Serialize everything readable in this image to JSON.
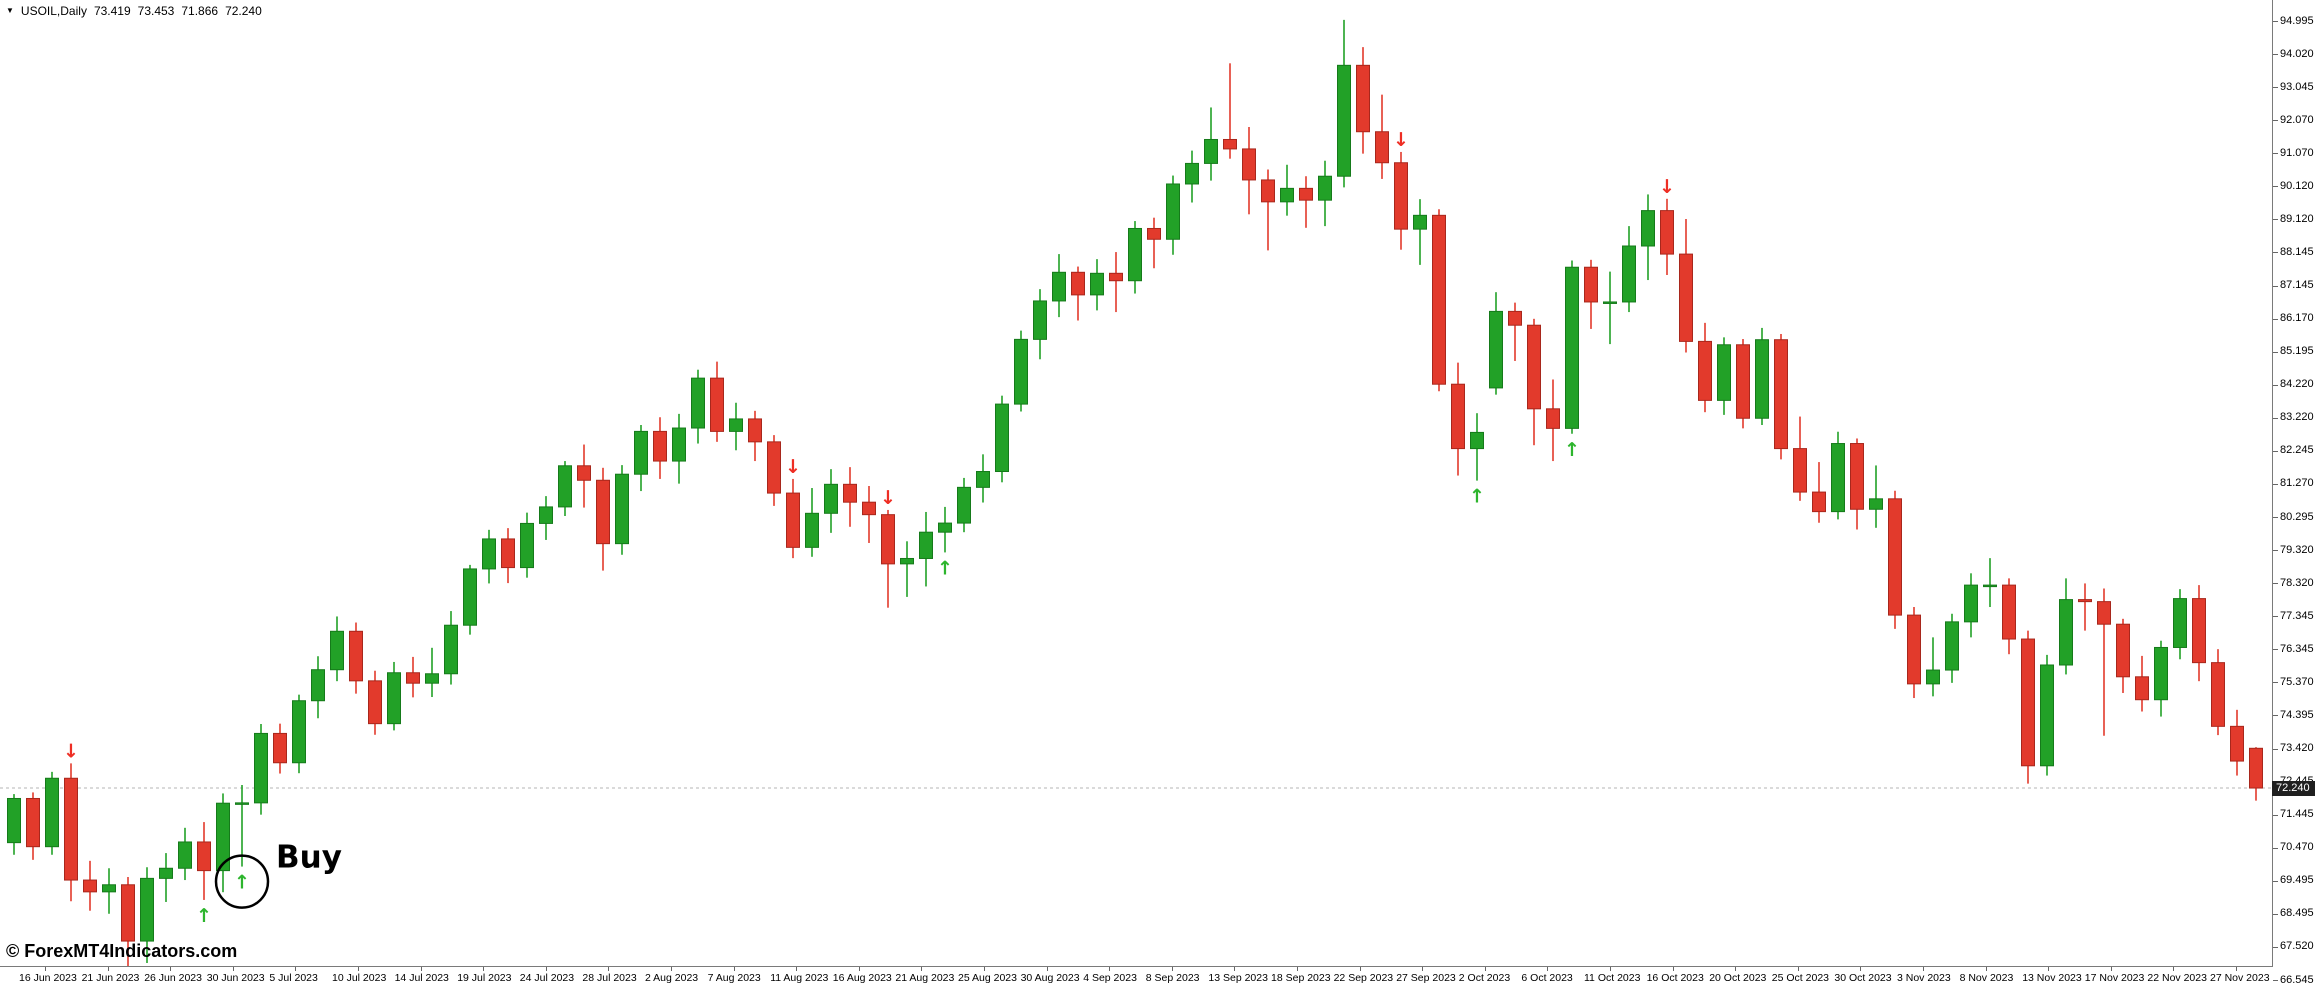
{
  "info_bar": {
    "symbol": "USOIL,Daily",
    "open": "73.419",
    "high": "73.453",
    "low": "71.866",
    "close": "72.240"
  },
  "watermark": "© ForexMT4Indicators.com",
  "annotation": {
    "label": "Buy"
  },
  "icons": {
    "chart_menu": "▼",
    "buy_arrow": "↑",
    "sell_arrow": "↓"
  },
  "chart_data": {
    "type": "candlestick",
    "symbol": "USOIL",
    "timeframe": "Daily",
    "price_axis": {
      "top_value": 94.995,
      "bottom_value": 66.545,
      "current_price": "72.240",
      "current_price_value": 72.24,
      "labels": [
        "94.995",
        "94.020",
        "93.045",
        "92.070",
        "91.070",
        "90.120",
        "89.120",
        "88.145",
        "87.145",
        "86.170",
        "85.195",
        "84.220",
        "83.220",
        "82.245",
        "81.270",
        "80.295",
        "79.320",
        "78.320",
        "77.345",
        "76.345",
        "75.370",
        "74.395",
        "73.420",
        "72.445",
        "71.445",
        "70.470",
        "69.495",
        "68.495",
        "67.520",
        "66.545"
      ]
    },
    "time_axis": {
      "labels": [
        "16 Jun 2023",
        "21 Jun 2023",
        "26 Jun 2023",
        "30 Jun 2023",
        "5 Jul 2023",
        "10 Jul 2023",
        "14 Jul 2023",
        "19 Jul 2023",
        "24 Jul 2023",
        "28 Jul 2023",
        "2 Aug 2023",
        "7 Aug 2023",
        "11 Aug 2023",
        "16 Aug 2023",
        "21 Aug 2023",
        "25 Aug 2023",
        "30 Aug 2023",
        "4 Sep 2023",
        "8 Sep 2023",
        "13 Sep 2023",
        "18 Sep 2023",
        "22 Sep 2023",
        "27 Sep 2023",
        "2 Oct 2023",
        "6 Oct 2023",
        "11 Oct 2023",
        "16 Oct 2023",
        "20 Oct 2023",
        "25 Oct 2023",
        "30 Oct 2023",
        "3 Nov 2023",
        "8 Nov 2023",
        "13 Nov 2023",
        "17 Nov 2023",
        "22 Nov 2023",
        "27 Nov 2023"
      ]
    },
    "candles": [
      [
        70.62,
        72.06,
        70.26,
        71.93
      ],
      [
        71.93,
        72.11,
        70.11,
        70.5
      ],
      [
        70.5,
        72.72,
        70.26,
        72.53
      ],
      [
        72.53,
        72.97,
        68.88,
        69.51
      ],
      [
        69.51,
        70.08,
        68.6,
        69.16
      ],
      [
        69.16,
        69.86,
        68.51,
        69.37
      ],
      [
        69.37,
        69.6,
        66.96,
        67.7
      ],
      [
        67.7,
        69.89,
        67.05,
        69.56
      ],
      [
        69.56,
        70.31,
        68.86,
        69.86
      ],
      [
        69.86,
        71.06,
        69.51,
        70.64
      ],
      [
        70.64,
        71.23,
        68.92,
        69.79
      ],
      [
        69.79,
        72.08,
        69.15,
        71.79
      ],
      [
        71.79,
        72.33,
        69.91,
        71.8
      ],
      [
        71.8,
        74.14,
        71.45,
        73.86
      ],
      [
        73.86,
        74.15,
        72.67,
        72.99
      ],
      [
        72.99,
        75.01,
        72.68,
        74.83
      ],
      [
        74.83,
        76.15,
        74.31,
        75.75
      ],
      [
        75.75,
        77.33,
        75.41,
        76.89
      ],
      [
        76.89,
        77.15,
        75.04,
        75.42
      ],
      [
        75.42,
        75.72,
        73.82,
        74.15
      ],
      [
        74.15,
        75.98,
        73.95,
        75.66
      ],
      [
        75.66,
        76.13,
        74.93,
        75.35
      ],
      [
        75.35,
        76.4,
        74.94,
        75.63
      ],
      [
        75.63,
        77.49,
        75.31,
        77.07
      ],
      [
        77.07,
        78.86,
        76.79,
        78.74
      ],
      [
        78.74,
        79.9,
        78.31,
        79.63
      ],
      [
        79.63,
        79.95,
        78.32,
        78.78
      ],
      [
        78.78,
        80.41,
        78.48,
        80.09
      ],
      [
        80.09,
        80.9,
        79.6,
        80.58
      ],
      [
        80.58,
        81.94,
        80.31,
        81.8
      ],
      [
        81.8,
        82.43,
        80.56,
        81.37
      ],
      [
        81.37,
        81.74,
        78.69,
        79.49
      ],
      [
        79.49,
        81.82,
        79.16,
        81.55
      ],
      [
        81.55,
        83.01,
        81.05,
        82.82
      ],
      [
        82.82,
        83.24,
        81.41,
        81.94
      ],
      [
        81.94,
        83.34,
        81.27,
        82.92
      ],
      [
        82.92,
        84.65,
        82.46,
        84.4
      ],
      [
        84.4,
        84.89,
        82.51,
        82.82
      ],
      [
        82.82,
        83.67,
        82.26,
        83.19
      ],
      [
        83.19,
        83.43,
        81.94,
        82.51
      ],
      [
        82.51,
        82.71,
        80.61,
        80.99
      ],
      [
        80.99,
        81.41,
        79.06,
        79.38
      ],
      [
        79.38,
        81.14,
        79.1,
        80.39
      ],
      [
        80.39,
        81.7,
        79.81,
        81.25
      ],
      [
        81.25,
        81.76,
        79.99,
        80.72
      ],
      [
        80.72,
        81.2,
        79.51,
        80.35
      ],
      [
        80.35,
        80.49,
        77.59,
        78.89
      ],
      [
        78.89,
        79.56,
        77.91,
        79.05
      ],
      [
        79.05,
        80.43,
        78.22,
        79.83
      ],
      [
        79.83,
        80.58,
        79.23,
        80.1
      ],
      [
        80.1,
        81.44,
        79.83,
        81.16
      ],
      [
        81.16,
        82.14,
        80.71,
        81.63
      ],
      [
        81.63,
        83.88,
        81.31,
        83.63
      ],
      [
        83.63,
        85.81,
        83.41,
        85.55
      ],
      [
        85.55,
        87.04,
        84.96,
        86.69
      ],
      [
        86.69,
        88.08,
        86.21,
        87.54
      ],
      [
        87.54,
        87.71,
        86.11,
        86.87
      ],
      [
        86.87,
        87.93,
        86.41,
        87.51
      ],
      [
        87.51,
        88.14,
        86.36,
        87.29
      ],
      [
        87.29,
        89.06,
        86.91,
        88.84
      ],
      [
        88.84,
        89.16,
        87.66,
        88.52
      ],
      [
        88.52,
        90.41,
        88.06,
        90.16
      ],
      [
        90.16,
        91.15,
        89.61,
        90.77
      ],
      [
        90.77,
        92.43,
        90.26,
        91.48
      ],
      [
        91.48,
        93.74,
        90.91,
        91.2
      ],
      [
        91.2,
        91.85,
        89.26,
        90.28
      ],
      [
        90.28,
        90.59,
        88.19,
        89.63
      ],
      [
        89.63,
        90.73,
        89.22,
        90.03
      ],
      [
        90.03,
        90.39,
        88.86,
        89.68
      ],
      [
        89.68,
        90.85,
        88.91,
        90.39
      ],
      [
        90.39,
        95.03,
        90.06,
        93.68
      ],
      [
        93.68,
        94.22,
        91.06,
        91.71
      ],
      [
        91.71,
        92.81,
        90.31,
        90.79
      ],
      [
        90.79,
        91.11,
        88.21,
        88.82
      ],
      [
        88.82,
        89.71,
        87.76,
        89.23
      ],
      [
        89.23,
        89.41,
        84.01,
        84.22
      ],
      [
        84.22,
        84.86,
        81.51,
        82.31
      ],
      [
        82.31,
        83.36,
        81.36,
        82.79
      ],
      [
        84.11,
        86.95,
        83.91,
        86.38
      ],
      [
        86.38,
        86.64,
        84.91,
        85.97
      ],
      [
        85.97,
        86.16,
        82.41,
        83.49
      ],
      [
        83.49,
        84.36,
        81.94,
        82.91
      ],
      [
        82.91,
        87.89,
        82.75,
        87.69
      ],
      [
        87.69,
        87.91,
        85.86,
        86.66
      ],
      [
        86.66,
        87.56,
        85.41,
        86.66
      ],
      [
        86.66,
        88.91,
        86.36,
        88.32
      ],
      [
        88.32,
        89.85,
        87.31,
        89.37
      ],
      [
        89.37,
        89.72,
        87.46,
        88.08
      ],
      [
        88.08,
        89.12,
        85.16,
        85.49
      ],
      [
        85.49,
        86.04,
        83.39,
        83.74
      ],
      [
        83.74,
        85.61,
        83.31,
        85.39
      ],
      [
        85.39,
        85.56,
        82.91,
        83.21
      ],
      [
        83.21,
        85.89,
        83.01,
        85.54
      ],
      [
        85.54,
        85.71,
        81.99,
        82.31
      ],
      [
        82.31,
        83.26,
        80.76,
        81.02
      ],
      [
        81.02,
        81.91,
        80.11,
        80.44
      ],
      [
        80.44,
        82.81,
        80.21,
        82.46
      ],
      [
        82.46,
        82.61,
        79.91,
        80.51
      ],
      [
        80.51,
        81.81,
        79.96,
        80.82
      ],
      [
        80.82,
        81.06,
        76.96,
        77.37
      ],
      [
        77.37,
        77.61,
        74.91,
        75.33
      ],
      [
        75.33,
        76.71,
        74.96,
        75.74
      ],
      [
        75.74,
        77.41,
        75.36,
        77.17
      ],
      [
        77.17,
        78.61,
        76.71,
        78.26
      ],
      [
        78.26,
        79.06,
        77.61,
        78.26
      ],
      [
        78.26,
        78.46,
        76.21,
        76.66
      ],
      [
        76.66,
        76.91,
        72.37,
        72.9
      ],
      [
        72.9,
        76.19,
        72.61,
        75.89
      ],
      [
        75.89,
        78.46,
        75.61,
        77.83
      ],
      [
        77.83,
        78.31,
        76.91,
        77.77
      ],
      [
        77.77,
        78.16,
        73.79,
        77.1
      ],
      [
        77.1,
        77.26,
        75.06,
        75.54
      ],
      [
        75.54,
        76.16,
        74.51,
        74.86
      ],
      [
        74.86,
        76.61,
        74.36,
        76.41
      ],
      [
        76.41,
        78.14,
        76.06,
        77.86
      ],
      [
        77.86,
        78.26,
        75.41,
        75.96
      ],
      [
        75.96,
        76.36,
        73.81,
        74.07
      ],
      [
        74.07,
        74.56,
        72.61,
        73.04
      ],
      [
        73.419,
        73.453,
        71.866,
        72.24
      ]
    ],
    "signals": [
      {
        "index": 3,
        "side": "sell"
      },
      {
        "index": 10,
        "side": "buy"
      },
      {
        "index": 12,
        "side": "buy",
        "circled": true
      },
      {
        "index": 41,
        "side": "sell"
      },
      {
        "index": 46,
        "side": "sell"
      },
      {
        "index": 49,
        "side": "buy"
      },
      {
        "index": 73,
        "side": "sell"
      },
      {
        "index": 77,
        "side": "buy"
      },
      {
        "index": 82,
        "side": "buy"
      },
      {
        "index": 87,
        "side": "sell"
      }
    ],
    "colors": {
      "bull": "#22a127",
      "bull_border": "#157a1a",
      "bear": "#e23a2c",
      "bear_border": "#a8271c",
      "buy_arrow": "#2db52d",
      "sell_arrow": "#ee2e24",
      "bid_line": "#b5b5b5",
      "bid_label_bg": "#1f1f1f",
      "annotation": "#000000"
    },
    "legend": "none",
    "grid": "off"
  }
}
